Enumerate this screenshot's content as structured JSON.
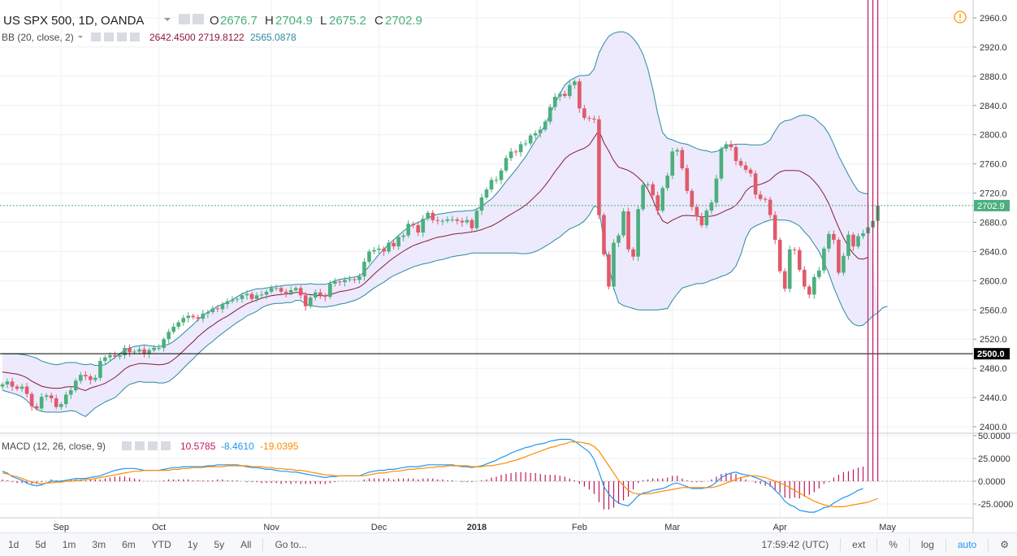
{
  "header": {
    "symbol": "US SPX 500, 1D, OANDA",
    "o_label": "O",
    "o_value": "2676.7",
    "h_label": "H",
    "h_value": "2704.9",
    "l_label": "L",
    "l_value": "2675.2",
    "c_label": "C",
    "c_value": "2702.9"
  },
  "bb": {
    "label": "BB (20, close, 2)",
    "v1": "2642.4500",
    "v2": "2719.8122",
    "v3": "2565.0878"
  },
  "macd": {
    "label": "MACD (12, 26, close, 9)",
    "v1": "10.5785",
    "v2": "-8.4610",
    "v3": "-19.0395"
  },
  "colors": {
    "up": "#4caf7d",
    "down": "#e05a6b",
    "bb_band": "#2a8aa0",
    "bb_basis": "#8b1a3a",
    "bb_fill": "#eceafc",
    "macd_line": "#2196f3",
    "signal_line": "#ff8c00",
    "hist": "#c2185b"
  },
  "chart_data": {
    "type": "candlestick",
    "ylim": [
      2390,
      2965
    ],
    "price_ticks": [
      "2960.0",
      "2920.0",
      "2880.0",
      "2840.0",
      "2800.0",
      "2760.0",
      "2720.0",
      "2680.0",
      "2640.0",
      "2600.0",
      "2560.0",
      "2520.0",
      "2480.0",
      "2440.0",
      "2400.0"
    ],
    "tick_values": [
      2960,
      2920,
      2880,
      2840,
      2800,
      2760,
      2720,
      2680,
      2640,
      2600,
      2560,
      2520,
      2480,
      2440,
      2400
    ],
    "last_price_label": "2702.9",
    "last_price": 2702.9,
    "level_label": "2500.0",
    "level": 2500.0,
    "closes": [
      2458,
      2462,
      2455,
      2452,
      2455,
      2445,
      2428,
      2425,
      2441,
      2443,
      2439,
      2427,
      2431,
      2444,
      2450,
      2463,
      2471,
      2469,
      2464,
      2467,
      2490,
      2495,
      2498,
      2496,
      2498,
      2508,
      2502,
      2503,
      2506,
      2500,
      2505,
      2508,
      2508,
      2520,
      2530,
      2537,
      2543,
      2549,
      2552,
      2550,
      2548,
      2555,
      2557,
      2562,
      2561,
      2568,
      2572,
      2574,
      2575,
      2580,
      2582,
      2575,
      2580,
      2581,
      2585,
      2590,
      2590,
      2585,
      2583,
      2587,
      2590,
      2580,
      2565,
      2577,
      2584,
      2580,
      2578,
      2596,
      2599,
      2598,
      2601,
      2602,
      2601,
      2606,
      2626,
      2640,
      2642,
      2644,
      2640,
      2652,
      2647,
      2660,
      2662,
      2678,
      2676,
      2666,
      2685,
      2693,
      2683,
      2682,
      2682,
      2684,
      2684,
      2682,
      2680,
      2683,
      2672,
      2696,
      2714,
      2725,
      2738,
      2738,
      2751,
      2768,
      2777,
      2776,
      2787,
      2788,
      2799,
      2802,
      2807,
      2818,
      2838,
      2852,
      2856,
      2853,
      2868,
      2873,
      2836,
      2823,
      2822,
      2821,
      2690,
      2636,
      2592,
      2652,
      2662,
      2695,
      2643,
      2633,
      2698,
      2731,
      2732,
      2717,
      2696,
      2727,
      2744,
      2777,
      2779,
      2754,
      2723,
      2701,
      2688,
      2676,
      2696,
      2707,
      2740,
      2781,
      2787,
      2783,
      2764,
      2758,
      2752,
      2747,
      2718,
      2712,
      2711,
      2690,
      2656,
      2613,
      2589,
      2643,
      2642,
      2615,
      2592,
      2581,
      2605,
      2614,
      2644,
      2664,
      2656,
      2611,
      2634,
      2663,
      2647,
      2661,
      2665,
      2673,
      2682,
      2703
    ],
    "bb_upper": [
      2500,
      2500,
      2500,
      2500,
      2499,
      2498,
      2496,
      2494,
      2490,
      2488,
      2486,
      2485,
      2486,
      2488,
      2488,
      2488,
      2486,
      2485,
      2486,
      2484,
      2484,
      2485,
      2490,
      2495,
      2500,
      2505,
      2508,
      2510,
      2511,
      2512,
      2511,
      2510,
      2510,
      2511,
      2513,
      2517,
      2522,
      2528,
      2534,
      2540,
      2547,
      2552,
      2557,
      2561,
      2565,
      2568,
      2570,
      2574,
      2578,
      2582,
      2585,
      2587,
      2589,
      2589,
      2590,
      2591,
      2592,
      2593,
      2594,
      2594,
      2595,
      2595,
      2595,
      2596,
      2595,
      2595,
      2595,
      2597,
      2600,
      2602,
      2603,
      2604,
      2605,
      2607,
      2612,
      2620,
      2628,
      2636,
      2643,
      2650,
      2656,
      2662,
      2668,
      2673,
      2677,
      2680,
      2683,
      2686,
      2689,
      2691,
      2692,
      2693,
      2694,
      2695,
      2695,
      2696,
      2696,
      2698,
      2702,
      2707,
      2712,
      2719,
      2727,
      2736,
      2744,
      2752,
      2761,
      2770,
      2781,
      2792,
      2802,
      2814,
      2828,
      2843,
      2856,
      2868,
      2874,
      2878,
      2881,
      2881,
      2882,
      2890,
      2912,
      2925,
      2935,
      2939,
      2941,
      2941,
      2938,
      2932,
      2923,
      2910,
      2890,
      2862,
      2829,
      2803,
      2795,
      2793,
      2790,
      2788,
      2787,
      2784,
      2781,
      2779,
      2778,
      2776,
      2777,
      2780,
      2785,
      2786,
      2787,
      2787,
      2787,
      2786,
      2786,
      2786,
      2788,
      2793,
      2805,
      2815,
      2819,
      2820,
      2823,
      2826,
      2827,
      2826,
      2823,
      2817,
      2811,
      2801,
      2787,
      2771,
      2758,
      2745,
      2733,
      2723,
      2720,
      2719
    ],
    "bb_lower": [
      2450,
      2448,
      2446,
      2444,
      2441,
      2436,
      2429,
      2424,
      2421,
      2420,
      2420,
      2420,
      2420,
      2421,
      2422,
      2421,
      2417,
      2414,
      2420,
      2426,
      2430,
      2434,
      2437,
      2440,
      2446,
      2453,
      2458,
      2460,
      2462,
      2461,
      2461,
      2461,
      2460,
      2460,
      2462,
      2467,
      2473,
      2480,
      2487,
      2493,
      2500,
      2506,
      2512,
      2517,
      2523,
      2528,
      2533,
      2538,
      2543,
      2547,
      2552,
      2555,
      2558,
      2563,
      2566,
      2568,
      2569,
      2569,
      2570,
      2570,
      2573,
      2573,
      2568,
      2566,
      2565,
      2564,
      2564,
      2565,
      2566,
      2568,
      2569,
      2571,
      2573,
      2576,
      2580,
      2585,
      2590,
      2594,
      2598,
      2603,
      2607,
      2610,
      2613,
      2616,
      2619,
      2621,
      2623,
      2624,
      2626,
      2628,
      2629,
      2631,
      2633,
      2634,
      2635,
      2636,
      2638,
      2638,
      2638,
      2638,
      2638,
      2638,
      2638,
      2638,
      2638,
      2638,
      2637,
      2637,
      2638,
      2640,
      2643,
      2647,
      2651,
      2656,
      2660,
      2666,
      2671,
      2674,
      2677,
      2682,
      2690,
      2702,
      2700,
      2653,
      2620,
      2590,
      2570,
      2566,
      2564,
      2562,
      2560,
      2560,
      2560,
      2560,
      2560,
      2561,
      2562,
      2573,
      2582,
      2590,
      2592,
      2594,
      2596,
      2596,
      2598,
      2601,
      2603,
      2606,
      2608,
      2612,
      2620,
      2636,
      2658,
      2671,
      2675,
      2678,
      2681,
      2683,
      2684,
      2683,
      2683,
      2682,
      2679,
      2675,
      2667,
      2660,
      2650,
      2640,
      2625,
      2610,
      2591,
      2575,
      2560,
      2548,
      2541,
      2538,
      2539,
      2545,
      2552,
      2556,
      2563,
      2565
    ],
    "macd_ylim": [
      -38,
      52
    ],
    "macd_ticks": [
      "50.0000",
      "25.0000",
      "0.0000",
      "-25.0000"
    ],
    "macd_tick_values": [
      50,
      25,
      0,
      -25
    ],
    "macd": [
      11,
      9,
      5,
      3,
      1,
      -2,
      -4,
      -5,
      -4,
      -2,
      0,
      0,
      0,
      1,
      2,
      3,
      3,
      3,
      4,
      5,
      6,
      8,
      10,
      12,
      13,
      14,
      14,
      14,
      13,
      12,
      12,
      12,
      12,
      13,
      14,
      15,
      15,
      16,
      16,
      16,
      16,
      16,
      17,
      17,
      18,
      18,
      18,
      18,
      18,
      17,
      16,
      15,
      15,
      14,
      13,
      13,
      12,
      11,
      11,
      10,
      10,
      9,
      8,
      7,
      6,
      5,
      4,
      5,
      5,
      6,
      6,
      6,
      6,
      6,
      8,
      10,
      11,
      12,
      12,
      13,
      13,
      14,
      15,
      16,
      16,
      16,
      17,
      18,
      18,
      18,
      18,
      18,
      18,
      17,
      16,
      16,
      15,
      16,
      17,
      19,
      21,
      23,
      26,
      28,
      31,
      33,
      35,
      37,
      38,
      40,
      41,
      42,
      44,
      45,
      46,
      46,
      46,
      44,
      40,
      36,
      32,
      24,
      10,
      -6,
      -14,
      -20,
      -24,
      -26,
      -27,
      -22,
      -16,
      -13,
      -12,
      -10,
      -9,
      -8,
      -6,
      -3,
      -2,
      -4,
      -6,
      -8,
      -8,
      -8,
      -7,
      -5,
      -1,
      4,
      7,
      9,
      10,
      8,
      7,
      6,
      4,
      2,
      -1,
      -4,
      -10,
      -15,
      -22,
      -26,
      -28,
      -32,
      -33,
      -34,
      -34,
      -32,
      -29,
      -28,
      -24,
      -21,
      -18,
      -16,
      -13,
      -10,
      -8
    ],
    "signal": [
      9,
      8,
      6,
      5,
      3,
      1,
      -1,
      -2,
      -3,
      -2,
      -2,
      -1,
      -1,
      0,
      0,
      1,
      1,
      2,
      2,
      3,
      4,
      5,
      6,
      7,
      8,
      9,
      10,
      11,
      11,
      12,
      12,
      12,
      12,
      12,
      12,
      13,
      13,
      14,
      14,
      15,
      15,
      15,
      16,
      16,
      16,
      16,
      17,
      17,
      17,
      17,
      17,
      16,
      16,
      16,
      15,
      15,
      14,
      14,
      13,
      13,
      12,
      12,
      11,
      10,
      9,
      8,
      7,
      7,
      6,
      6,
      6,
      6,
      6,
      6,
      6,
      7,
      8,
      9,
      9,
      10,
      11,
      11,
      12,
      13,
      13,
      14,
      14,
      15,
      15,
      16,
      16,
      17,
      17,
      17,
      17,
      17,
      16,
      16,
      16,
      17,
      17,
      18,
      19,
      20,
      22,
      23,
      25,
      27,
      29,
      31,
      33,
      35,
      37,
      38,
      40,
      41,
      43,
      43,
      43,
      42,
      41,
      38,
      33,
      25,
      17,
      9,
      1,
      -5,
      -10,
      -13,
      -14,
      -14,
      -14,
      -13,
      -12,
      -11,
      -10,
      -9,
      -8,
      -7,
      -7,
      -7,
      -7,
      -7,
      -7,
      -7,
      -6,
      -4,
      -2,
      0,
      2,
      4,
      5,
      6,
      6,
      5,
      4,
      2,
      0,
      -2,
      -4,
      -7,
      -10,
      -13,
      -16,
      -19,
      -22,
      -24,
      -26,
      -27,
      -28,
      -28,
      -28,
      -27,
      -26,
      -25,
      -24,
      -23,
      -21,
      -19
    ]
  },
  "x_axis": {
    "labels": [
      {
        "text": "Sep",
        "i": 12,
        "bold": false
      },
      {
        "text": "Oct",
        "i": 32,
        "bold": false
      },
      {
        "text": "Nov",
        "i": 55,
        "bold": false
      },
      {
        "text": "Dec",
        "i": 77,
        "bold": false
      },
      {
        "text": "2018",
        "i": 97,
        "bold": true
      },
      {
        "text": "Feb",
        "i": 118,
        "bold": false
      },
      {
        "text": "Mar",
        "i": 137,
        "bold": false
      },
      {
        "text": "Apr",
        "i": 159,
        "bold": false
      },
      {
        "text": "May",
        "i": 181,
        "bold": false
      }
    ]
  },
  "toolbar": {
    "ranges": [
      "1d",
      "5d",
      "1m",
      "3m",
      "6m",
      "YTD",
      "1y",
      "5y",
      "All"
    ],
    "goto": "Go to...",
    "time": "17:59:42 (UTC)",
    "ext": "ext",
    "percent": "%",
    "log": "log",
    "auto": "auto"
  }
}
